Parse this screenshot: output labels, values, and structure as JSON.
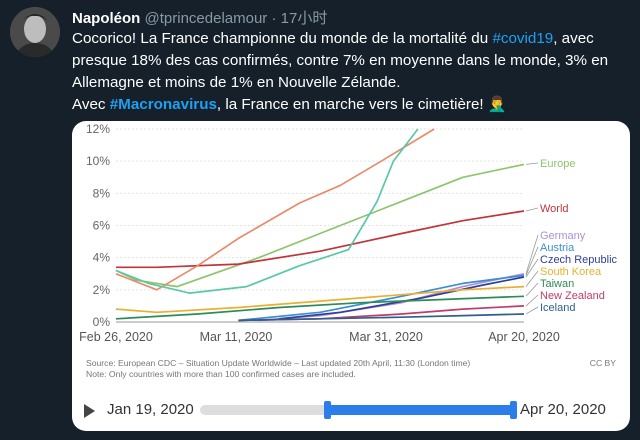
{
  "tweet": {
    "author_name": "Napoléon",
    "handle": "@tprincedelamour",
    "separator": "·",
    "time": "17小时",
    "line1_a": "Cocorico! La France championne du monde de la mortalité du ",
    "hashtag1": "#covid19",
    "line1_b": ", avec presque 18% des cas confirmés, contre 7% en moyenne dans le monde, 3% en Allemagne et moins de 1% en Nouvelle Zélande.",
    "line2_a": "Avec ",
    "hashtag2": "#Macronavirus",
    "line2_b": ", la France en marche vers le cimetière! 🤦‍♂️"
  },
  "chart_data": {
    "type": "line",
    "x_ticks": [
      "Feb 26, 2020",
      "Mar 11, 2020",
      "Mar 31, 2020",
      "Apr 20, 2020"
    ],
    "y_ticks": [
      "0%",
      "2%",
      "4%",
      "6%",
      "8%",
      "10%",
      "12%"
    ],
    "ylim": [
      0,
      12
    ],
    "grid": true,
    "series": [
      {
        "name": "Europe",
        "color": "#8dc56d",
        "end": 9.8
      },
      {
        "name": "World",
        "color": "#c0343a",
        "end": 6.9
      },
      {
        "name": "Germany",
        "color": "#b090d0",
        "end": 3.0
      },
      {
        "name": "Austria",
        "color": "#3a8ed6",
        "end": 2.9
      },
      {
        "name": "Czech Republic",
        "color": "#2f3e99",
        "end": 2.8
      },
      {
        "name": "South Korea",
        "color": "#e8b030",
        "end": 2.2
      },
      {
        "name": "Taiwan",
        "color": "#2e8b57",
        "end": 1.6
      },
      {
        "name": "New Zealand",
        "color": "#c23b6b",
        "end": 1.0
      },
      {
        "name": "Iceland",
        "color": "#2e5f8f",
        "end": 0.5
      },
      {
        "color": "#e98a6a",
        "end": 12
      },
      {
        "color": "#58c8a8",
        "end": 12
      }
    ],
    "source_line1": "Source: European CDC – Situation Update Worldwide – Last updated 20th April, 11:30 (London time)",
    "source_line2": "Note: Only countries with more than 100 confirmed cases are included.",
    "license": "CC BY",
    "timeline_start": "Jan 19, 2020",
    "timeline_end": "Apr 20, 2020"
  }
}
